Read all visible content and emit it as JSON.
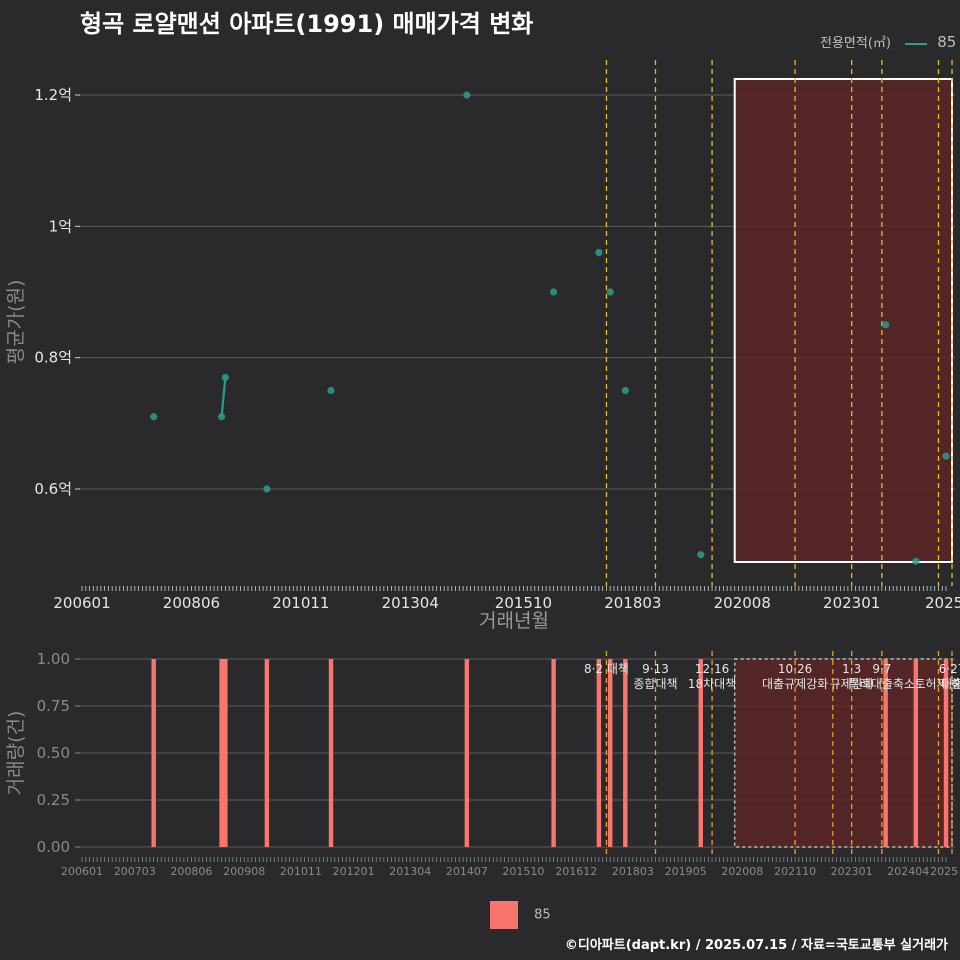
{
  "title": "형곡 로얄맨션 아파트(1991) 매매가격 변화",
  "legend_top": {
    "title": "전용면적(㎡)",
    "entry": "85"
  },
  "legend_bottom": {
    "entry": "85"
  },
  "caption": "©디아파트(dapt.kr) / 2025.07.15 / 자료=국토교통부 실거래가",
  "colors": {
    "line": "#2a9d8f",
    "bar": "#f8766d",
    "policy_line": "#e3c400",
    "highlight_fill": "#5a2426",
    "highlight_stroke": "#ffffff"
  },
  "chart_data": [
    {
      "type": "scatter",
      "name": "price",
      "xlabel": "거래년월",
      "ylabel": "평균가(원)",
      "x_range": [
        "2006-01",
        "2025-02"
      ],
      "ylim": [
        0.47,
        1.25
      ],
      "y_ticks": [
        {
          "value": 0.6,
          "label": "0.6억"
        },
        {
          "value": 0.8,
          "label": "0.8억"
        },
        {
          "value": 1.0,
          "label": "1억"
        },
        {
          "value": 1.2,
          "label": "1.2억"
        }
      ],
      "x_ticks": [
        "200601",
        "200806",
        "201011",
        "201304",
        "201510",
        "201803",
        "202008",
        "202301",
        "2025"
      ],
      "series": [
        {
          "name": "85",
          "points": [
            {
              "x": "2007-08",
              "y": 0.71
            },
            {
              "x": "2009-02",
              "y": 0.71
            },
            {
              "x": "2009-03",
              "y": 0.77
            },
            {
              "x": "2010-02",
              "y": 0.6
            },
            {
              "x": "2011-07",
              "y": 0.75
            },
            {
              "x": "2014-07",
              "y": 1.2
            },
            {
              "x": "2016-06",
              "y": 0.9
            },
            {
              "x": "2017-06",
              "y": 0.96
            },
            {
              "x": "2017-09",
              "y": 0.9
            },
            {
              "x": "2018-01",
              "y": 0.75
            },
            {
              "x": "2019-09",
              "y": 0.5
            },
            {
              "x": "2023-10",
              "y": 0.85
            },
            {
              "x": "2024-06",
              "y": 0.49
            },
            {
              "x": "2025-02",
              "y": 0.65
            }
          ],
          "connected_segments": [
            [
              "2009-02",
              "2009-03"
            ]
          ]
        }
      ],
      "policy_lines": [
        "2017-08",
        "2018-09",
        "2019-12",
        "2021-10",
        "2023-01",
        "2023-09",
        "2024-12",
        "2025-06"
      ],
      "highlight_range": [
        "2020-06",
        "2025-06"
      ]
    },
    {
      "type": "bar",
      "name": "volume",
      "xlabel": "",
      "ylabel": "거래량(건)",
      "ylim": [
        0,
        1.0
      ],
      "y_ticks": [
        "0.00",
        "0.25",
        "0.50",
        "0.75",
        "1.00"
      ],
      "x_ticks": [
        "200601",
        "200703",
        "200806",
        "200908",
        "201011",
        "201201",
        "201304",
        "201407",
        "201510",
        "201612",
        "201803",
        "201905",
        "202008",
        "202110",
        "202301",
        "202404",
        "2025"
      ],
      "series": [
        {
          "name": "85",
          "bars": [
            {
              "x": "2007-08",
              "value": 1
            },
            {
              "x": "2009-02",
              "value": 1
            },
            {
              "x": "2009-03",
              "value": 1
            },
            {
              "x": "2010-02",
              "value": 1
            },
            {
              "x": "2011-07",
              "value": 1
            },
            {
              "x": "2014-07",
              "value": 1
            },
            {
              "x": "2016-06",
              "value": 1
            },
            {
              "x": "2017-06",
              "value": 1
            },
            {
              "x": "2017-09",
              "value": 1
            },
            {
              "x": "2018-01",
              "value": 1
            },
            {
              "x": "2019-09",
              "value": 1
            },
            {
              "x": "2023-10",
              "value": 1
            },
            {
              "x": "2024-06",
              "value": 1
            },
            {
              "x": "2025-02",
              "value": 1
            }
          ]
        }
      ],
      "policy_lines": [
        "2017-08",
        "2018-09",
        "2019-12",
        "2021-10",
        "2022-08",
        "2023-01",
        "2023-09",
        "2024-12",
        "2025-06"
      ],
      "highlight_range": [
        "2020-06",
        "2025-06"
      ],
      "annotations": [
        {
          "x": "2017-08",
          "lines": [
            "8·2 대책"
          ]
        },
        {
          "x": "2018-09",
          "lines": [
            "9·13",
            "종합대책"
          ]
        },
        {
          "x": "2019-12",
          "lines": [
            "12·16",
            "18차대책"
          ]
        },
        {
          "x": "2021-10",
          "lines": [
            "10·26",
            "대출규제강화"
          ]
        },
        {
          "x": "2023-01",
          "lines": [
            "1·3",
            "규제완화"
          ]
        },
        {
          "x": "2023-09",
          "lines": [
            "9·7",
            "특례대출축소"
          ]
        },
        {
          "x": "2024-12",
          "lines": [
            "",
            "토허제 해"
          ]
        },
        {
          "x": "2025-06",
          "lines": [
            "6·27",
            "대출"
          ]
        }
      ]
    }
  ]
}
